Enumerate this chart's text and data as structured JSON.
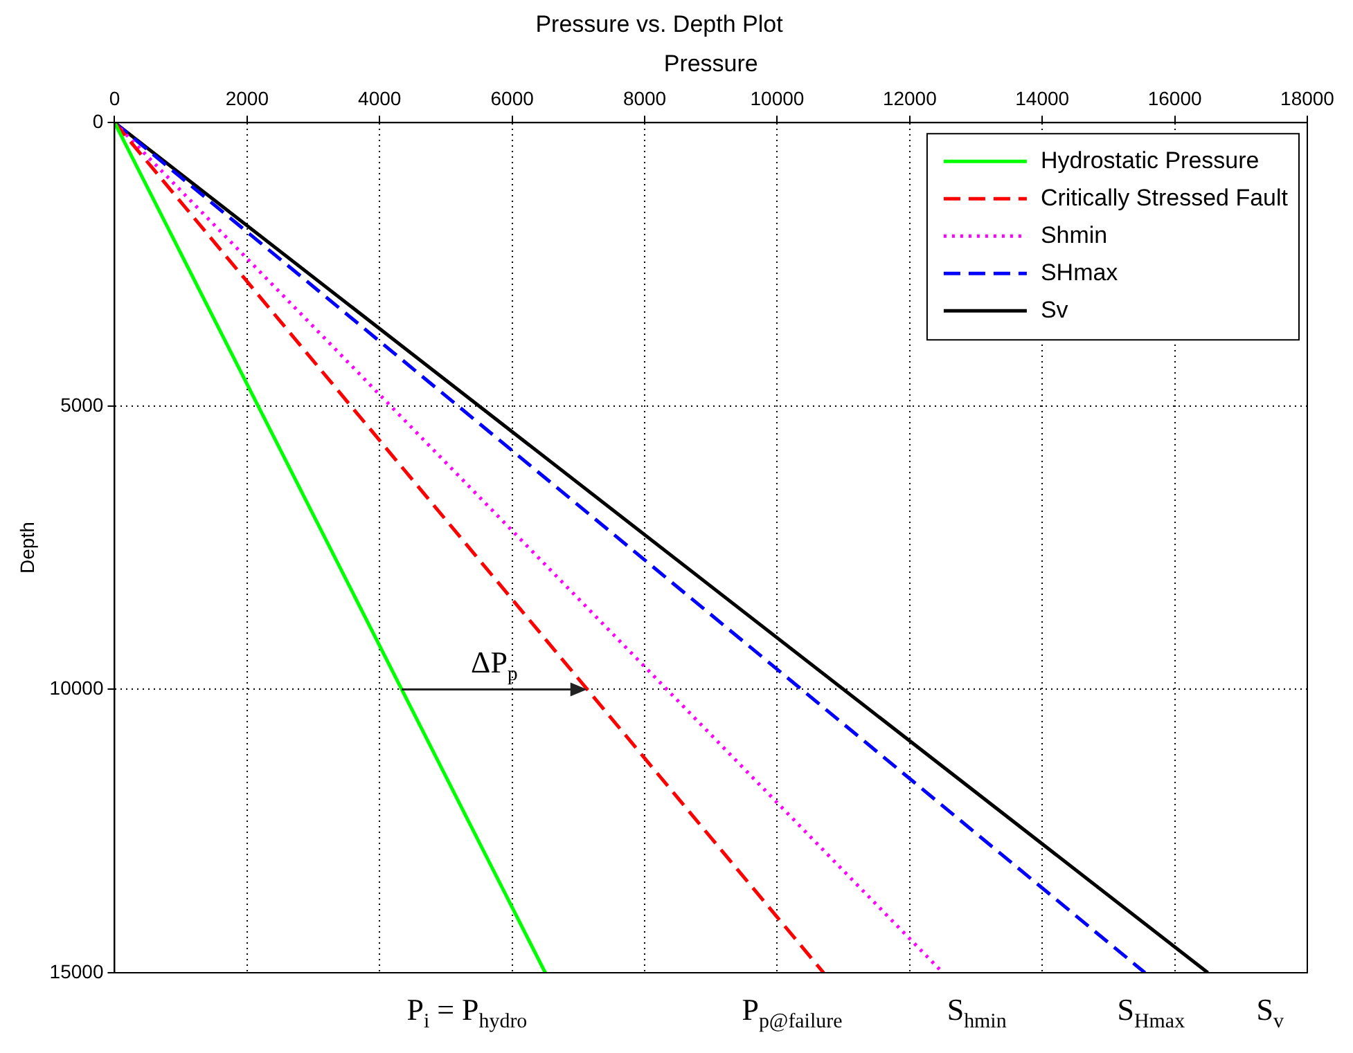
{
  "chart_data": {
    "type": "line",
    "title": "Pressure vs. Depth Plot",
    "xlabel": "Pressure",
    "ylabel": "Depth",
    "xlim": [
      0,
      18000
    ],
    "xticks": [
      0,
      2000,
      4000,
      6000,
      8000,
      10000,
      12000,
      14000,
      16000,
      18000
    ],
    "ylim": [
      15000,
      0
    ],
    "yticks": [
      0,
      5000,
      10000,
      15000
    ],
    "grid": true,
    "legend": "top right",
    "marker": "none",
    "series": [
      {
        "name": "Hydrostatic Pressure",
        "color": "#00ff00",
        "line_style": "solid",
        "x": [
          0,
          6500
        ],
        "values": [
          0,
          15000
        ]
      },
      {
        "name": "Critically Stressed Fault",
        "color": "#ff0000",
        "line_style": "dashed",
        "x": [
          0,
          10700
        ],
        "values": [
          0,
          15000
        ]
      },
      {
        "name": "Shmin",
        "color": "#ff00ff",
        "line_style": "dotted",
        "x": [
          0,
          12500
        ],
        "values": [
          0,
          15000
        ]
      },
      {
        "name": "SHmax",
        "color": "#0000ff",
        "line_style": "dashed",
        "x": [
          0,
          15550
        ],
        "values": [
          0,
          15000
        ]
      },
      {
        "name": "Sv",
        "color": "#000000",
        "line_style": "solid",
        "x": [
          0,
          16500
        ],
        "values": [
          0,
          15000
        ]
      }
    ],
    "annotations": [
      {
        "text": "ΔP$_{p}$",
        "x": 7130,
        "y": 10000
      },
      "P$_{i}$ = P$_{hydro}$",
      "P$_{p@failure}$",
      "S$_{hmin}$",
      "S$_{Hmax}$",
      "S$_{v}$"
    ]
  }
}
